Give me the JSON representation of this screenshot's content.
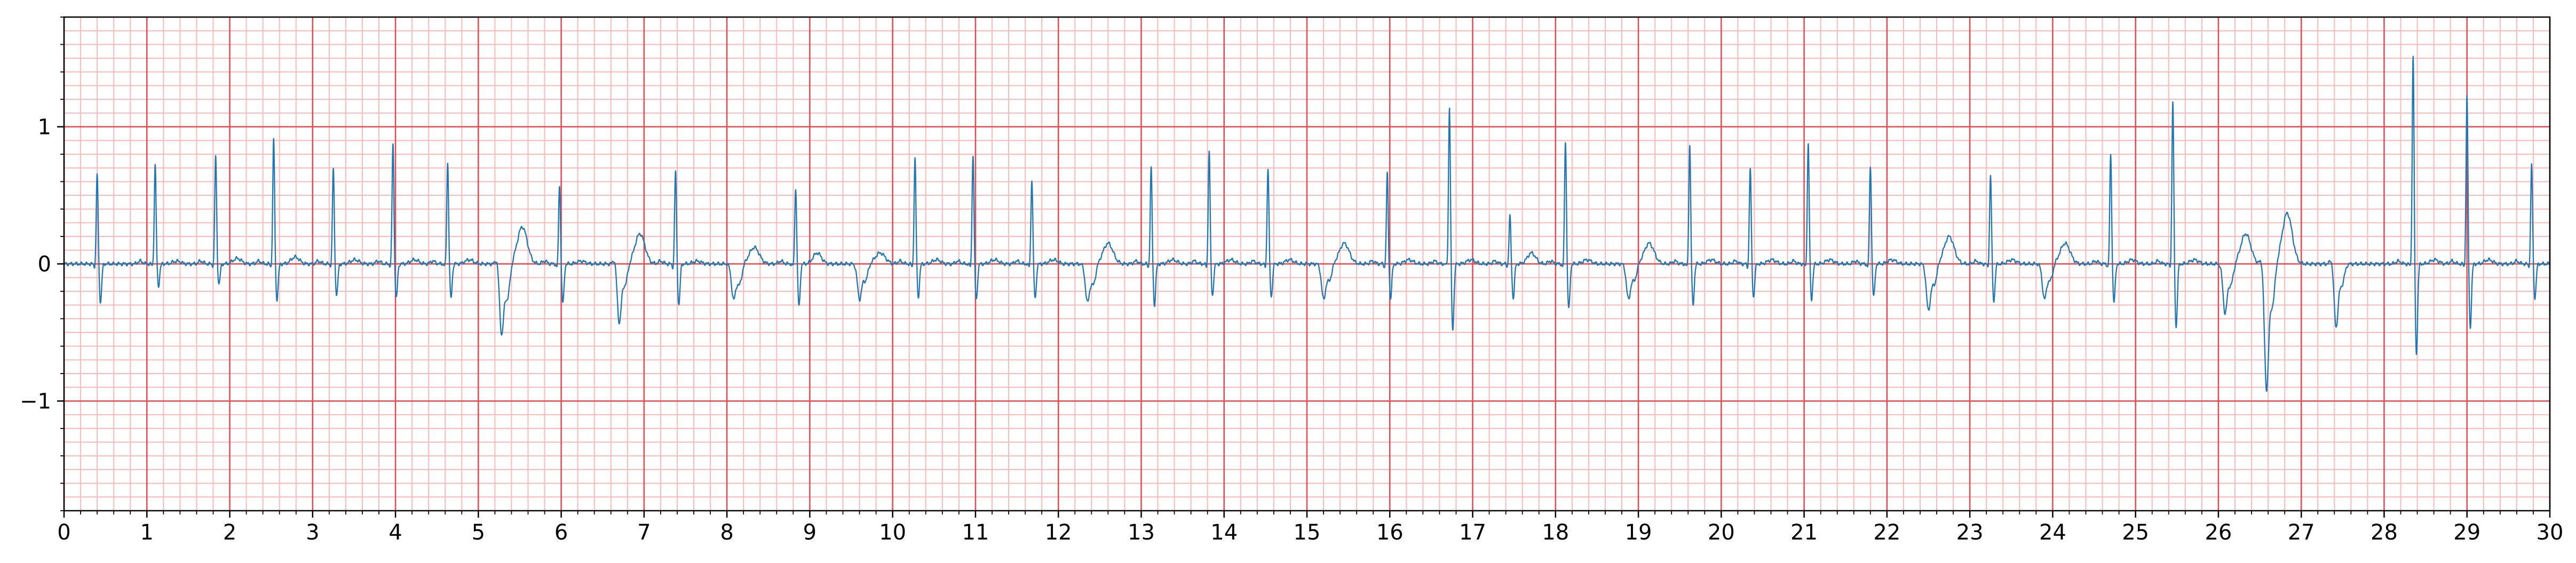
{
  "chart_data": {
    "type": "line",
    "title": "",
    "xlabel": "",
    "ylabel": "",
    "xlim": [
      0,
      30
    ],
    "ylim": [
      -1.8,
      1.8
    ],
    "x_ticks": [
      0,
      1,
      2,
      3,
      4,
      5,
      6,
      7,
      8,
      9,
      10,
      11,
      12,
      13,
      14,
      15,
      16,
      17,
      18,
      19,
      20,
      21,
      22,
      23,
      24,
      25,
      26,
      27,
      28,
      29,
      30
    ],
    "x_tick_labels": [
      "0",
      "1",
      "2",
      "3",
      "4",
      "5",
      "6",
      "7",
      "8",
      "9",
      "10",
      "11",
      "12",
      "13",
      "14",
      "15",
      "16",
      "17",
      "18",
      "19",
      "20",
      "21",
      "22",
      "23",
      "24",
      "25",
      "26",
      "27",
      "28",
      "29",
      "30"
    ],
    "y_ticks": [
      -1,
      0,
      1
    ],
    "y_tick_labels": [
      "−1",
      "0",
      "1"
    ],
    "grid": {
      "major": true,
      "minor": true,
      "major_x_step": 1,
      "major_y_step": 1,
      "minor_x_step": 0.2,
      "minor_y_step": 0.1,
      "major_color": "#e8484e",
      "minor_color": "#ffb8b8"
    },
    "series": [
      {
        "color": "#1f77b4",
        "beats": [
          {
            "t": 0.4,
            "r": 0.66,
            "q": -0.03,
            "s": -0.28,
            "p": 0.0,
            "tw": 0.0
          },
          {
            "t": 1.1,
            "r": 0.72,
            "q": -0.02,
            "s": -0.16,
            "p": 0.02,
            "tw": 0.02
          },
          {
            "t": 1.83,
            "r": 0.79,
            "q": -0.02,
            "s": -0.15,
            "p": 0.02,
            "tw": 0.04
          },
          {
            "t": 2.53,
            "r": 0.91,
            "q": -0.03,
            "s": -0.26,
            "p": 0.02,
            "tw": 0.05
          },
          {
            "t": 3.25,
            "r": 0.7,
            "q": -0.02,
            "s": -0.23,
            "p": 0.02,
            "tw": 0.03
          },
          {
            "t": 3.97,
            "r": 0.88,
            "q": -0.02,
            "s": -0.25,
            "p": 0.02,
            "tw": 0.03
          },
          {
            "t": 4.63,
            "r": 0.74,
            "q": -0.02,
            "s": -0.25,
            "p": 0.02,
            "tw": 0.03
          },
          {
            "t": 5.28,
            "r": -0.5,
            "q": 0.05,
            "s": -0.25,
            "p": 0.0,
            "tw": 0.27,
            "pvc": true
          },
          {
            "t": 5.98,
            "r": 0.58,
            "q": -0.03,
            "s": -0.29,
            "p": 0.02,
            "tw": 0.02
          },
          {
            "t": 6.7,
            "r": -0.42,
            "q": 0.05,
            "s": -0.15,
            "p": 0.0,
            "tw": 0.22,
            "pvc": true
          },
          {
            "t": 7.38,
            "r": 0.68,
            "q": -0.03,
            "s": -0.3,
            "p": 0.02,
            "tw": 0.02
          },
          {
            "t": 8.08,
            "r": -0.25,
            "q": 0.0,
            "s": -0.15,
            "p": 0.0,
            "tw": 0.12,
            "pvc": true
          },
          {
            "t": 8.83,
            "r": 0.56,
            "q": -0.02,
            "s": -0.31,
            "p": 0.02,
            "tw": 0.08
          },
          {
            "t": 9.6,
            "r": -0.25,
            "q": 0.0,
            "s": -0.12,
            "p": 0.0,
            "tw": 0.08,
            "pvc": true
          },
          {
            "t": 10.27,
            "r": 0.77,
            "q": -0.03,
            "s": -0.24,
            "p": 0.02,
            "tw": 0.03
          },
          {
            "t": 10.97,
            "r": 0.8,
            "q": -0.03,
            "s": -0.26,
            "p": 0.02,
            "tw": 0.03
          },
          {
            "t": 11.68,
            "r": 0.62,
            "q": -0.03,
            "s": -0.25,
            "p": 0.02,
            "tw": 0.03
          },
          {
            "t": 12.35,
            "r": -0.27,
            "q": 0.0,
            "s": -0.15,
            "p": 0.0,
            "tw": 0.15,
            "pvc": true
          },
          {
            "t": 13.12,
            "r": 0.7,
            "q": -0.03,
            "s": -0.3,
            "p": 0.02,
            "tw": 0.03
          },
          {
            "t": 13.82,
            "r": 0.83,
            "q": -0.03,
            "s": -0.23,
            "p": 0.02,
            "tw": 0.03
          },
          {
            "t": 14.53,
            "r": 0.7,
            "q": -0.03,
            "s": -0.24,
            "p": 0.02,
            "tw": 0.03
          },
          {
            "t": 15.2,
            "r": -0.25,
            "q": 0.0,
            "s": -0.12,
            "p": 0.0,
            "tw": 0.15,
            "pvc": true
          },
          {
            "t": 15.97,
            "r": 0.66,
            "q": -0.03,
            "s": -0.25,
            "p": 0.02,
            "tw": 0.03
          },
          {
            "t": 16.72,
            "r": 1.15,
            "q": -0.02,
            "s": -0.48,
            "p": 0.02,
            "tw": 0.03
          },
          {
            "t": 17.45,
            "r": 0.35,
            "q": -0.02,
            "s": -0.25,
            "p": 0.02,
            "tw": 0.08
          },
          {
            "t": 18.12,
            "r": 0.9,
            "q": -0.03,
            "s": -0.33,
            "p": 0.02,
            "tw": 0.03
          },
          {
            "t": 18.88,
            "r": -0.25,
            "q": 0.0,
            "s": -0.12,
            "p": 0.0,
            "tw": 0.15,
            "pvc": true
          },
          {
            "t": 19.62,
            "r": 0.87,
            "q": -0.03,
            "s": -0.3,
            "p": 0.02,
            "tw": 0.03
          },
          {
            "t": 20.35,
            "r": 0.7,
            "q": -0.03,
            "s": -0.24,
            "p": 0.02,
            "tw": 0.03
          },
          {
            "t": 21.05,
            "r": 0.88,
            "q": -0.03,
            "s": -0.26,
            "p": 0.02,
            "tw": 0.03
          },
          {
            "t": 21.8,
            "r": 0.72,
            "q": -0.03,
            "s": -0.24,
            "p": 0.02,
            "tw": 0.03
          },
          {
            "t": 22.5,
            "r": -0.33,
            "q": 0.0,
            "s": -0.15,
            "p": 0.0,
            "tw": 0.2,
            "pvc": true
          },
          {
            "t": 23.25,
            "r": 0.65,
            "q": -0.03,
            "s": -0.27,
            "p": 0.02,
            "tw": 0.03
          },
          {
            "t": 23.9,
            "r": -0.25,
            "q": 0.0,
            "s": -0.12,
            "p": 0.0,
            "tw": 0.15,
            "pvc": true
          },
          {
            "t": 24.7,
            "r": 0.8,
            "q": -0.03,
            "s": -0.28,
            "p": 0.02,
            "tw": 0.03
          },
          {
            "t": 25.45,
            "r": 1.19,
            "q": -0.03,
            "s": -0.46,
            "p": 0.02,
            "tw": 0.03
          },
          {
            "t": 26.08,
            "r": -0.35,
            "q": 0.0,
            "s": -0.15,
            "p": 0.0,
            "tw": 0.22,
            "pvc": true
          },
          {
            "t": 26.58,
            "r": -0.9,
            "q": 0.05,
            "s": -0.3,
            "p": 0.0,
            "tw": 0.37,
            "pvc": true
          },
          {
            "t": 27.42,
            "r": -0.45,
            "q": 0.05,
            "s": -0.15,
            "p": 0.0,
            "tw": 0.0,
            "pvc": true
          },
          {
            "t": 28.35,
            "r": 1.52,
            "q": -0.03,
            "s": -0.65,
            "p": 0.02,
            "tw": 0.03
          },
          {
            "t": 29.0,
            "r": 1.23,
            "q": -0.03,
            "s": -0.46,
            "p": 0.02,
            "tw": 0.03
          },
          {
            "t": 29.78,
            "r": 0.73,
            "q": -0.03,
            "s": -0.25,
            "p": 0.02,
            "tw": 0.0
          }
        ]
      }
    ]
  }
}
